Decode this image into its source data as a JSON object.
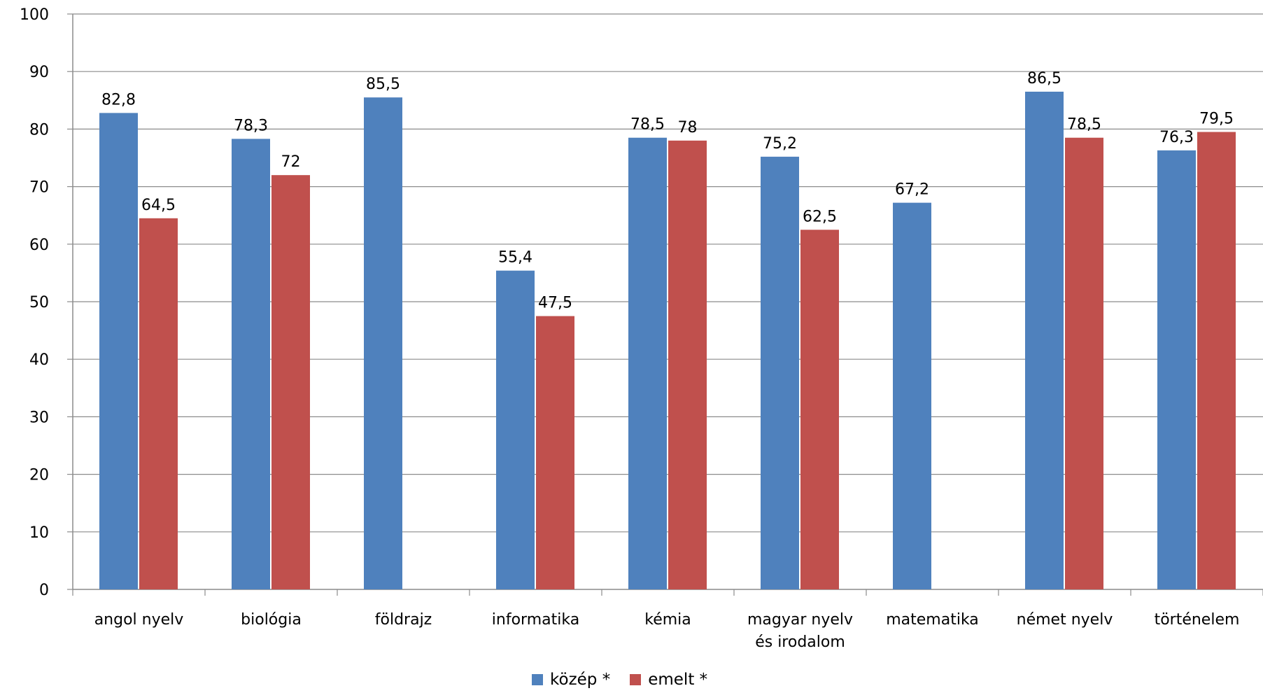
{
  "chart_data": {
    "type": "bar",
    "categories": [
      [
        "angol nyelv"
      ],
      [
        "biológia"
      ],
      [
        "földrajz"
      ],
      [
        "informatika"
      ],
      [
        "kémia"
      ],
      [
        "magyar nyelv",
        "és irodalom"
      ],
      [
        "matematika"
      ],
      [
        "német nyelv"
      ],
      [
        "történelem"
      ]
    ],
    "series": [
      {
        "name": "közép *",
        "color": "#4f81bd",
        "values": [
          82.8,
          78.3,
          85.5,
          55.4,
          78.5,
          75.2,
          67.2,
          86.5,
          76.3
        ],
        "labels": [
          "82,8",
          "78,3",
          "85,5",
          "55,4",
          "78,5",
          "75,2",
          "67,2",
          "86,5",
          "76,3"
        ]
      },
      {
        "name": "emelt *",
        "color": "#c0504d",
        "values": [
          64.5,
          72,
          null,
          47.5,
          78,
          62.5,
          null,
          78.5,
          79.5
        ],
        "labels": [
          "64,5",
          "72",
          "",
          "47,5",
          "78",
          "62,5",
          "",
          "78,5",
          "79,5"
        ]
      }
    ],
    "yticks": [
      "0",
      "10",
      "20",
      "30",
      "40",
      "50",
      "60",
      "70",
      "80",
      "90",
      "100"
    ],
    "ylim": [
      0,
      100
    ],
    "grid": true,
    "legend_position": "bottom",
    "title": "",
    "xlabel": "",
    "ylabel": ""
  }
}
